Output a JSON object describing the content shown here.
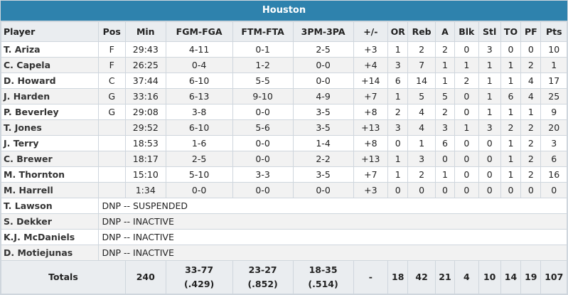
{
  "team": "Houston",
  "columns": [
    "Player",
    "Pos",
    "Min",
    "FGM-FGA",
    "FTM-FTA",
    "3PM-3PA",
    "+/-",
    "OR",
    "Reb",
    "A",
    "Blk",
    "Stl",
    "TO",
    "PF",
    "Pts"
  ],
  "players": [
    {
      "name": "T. Ariza",
      "pos": "F",
      "min": "29:43",
      "fg": "4-11",
      "ft": "0-1",
      "tp": "2-5",
      "pm": "+3",
      "or": "1",
      "reb": "2",
      "a": "2",
      "blk": "0",
      "stl": "3",
      "to": "0",
      "pf": "0",
      "pts": "10"
    },
    {
      "name": "C. Capela",
      "pos": "F",
      "min": "26:25",
      "fg": "0-4",
      "ft": "1-2",
      "tp": "0-0",
      "pm": "+4",
      "or": "3",
      "reb": "7",
      "a": "1",
      "blk": "1",
      "stl": "1",
      "to": "1",
      "pf": "2",
      "pts": "1"
    },
    {
      "name": "D. Howard",
      "pos": "C",
      "min": "37:44",
      "fg": "6-10",
      "ft": "5-5",
      "tp": "0-0",
      "pm": "+14",
      "or": "6",
      "reb": "14",
      "a": "1",
      "blk": "2",
      "stl": "1",
      "to": "1",
      "pf": "4",
      "pts": "17"
    },
    {
      "name": "J. Harden",
      "pos": "G",
      "min": "33:16",
      "fg": "6-13",
      "ft": "9-10",
      "tp": "4-9",
      "pm": "+7",
      "or": "1",
      "reb": "5",
      "a": "5",
      "blk": "0",
      "stl": "1",
      "to": "6",
      "pf": "4",
      "pts": "25"
    },
    {
      "name": "P. Beverley",
      "pos": "G",
      "min": "29:08",
      "fg": "3-8",
      "ft": "0-0",
      "tp": "3-5",
      "pm": "+8",
      "or": "2",
      "reb": "4",
      "a": "2",
      "blk": "0",
      "stl": "1",
      "to": "1",
      "pf": "1",
      "pts": "9"
    },
    {
      "name": "T. Jones",
      "pos": "",
      "min": "29:52",
      "fg": "6-10",
      "ft": "5-6",
      "tp": "3-5",
      "pm": "+13",
      "or": "3",
      "reb": "4",
      "a": "3",
      "blk": "1",
      "stl": "3",
      "to": "2",
      "pf": "2",
      "pts": "20"
    },
    {
      "name": "J. Terry",
      "pos": "",
      "min": "18:53",
      "fg": "1-6",
      "ft": "0-0",
      "tp": "1-4",
      "pm": "+8",
      "or": "0",
      "reb": "1",
      "a": "6",
      "blk": "0",
      "stl": "0",
      "to": "1",
      "pf": "2",
      "pts": "3"
    },
    {
      "name": "C. Brewer",
      "pos": "",
      "min": "18:17",
      "fg": "2-5",
      "ft": "0-0",
      "tp": "2-2",
      "pm": "+13",
      "or": "1",
      "reb": "3",
      "a": "0",
      "blk": "0",
      "stl": "0",
      "to": "1",
      "pf": "2",
      "pts": "6"
    },
    {
      "name": "M. Thornton",
      "pos": "",
      "min": "15:10",
      "fg": "5-10",
      "ft": "3-3",
      "tp": "3-5",
      "pm": "+7",
      "or": "1",
      "reb": "2",
      "a": "1",
      "blk": "0",
      "stl": "0",
      "to": "1",
      "pf": "2",
      "pts": "16"
    },
    {
      "name": "M. Harrell",
      "pos": "",
      "min": "1:34",
      "fg": "0-0",
      "ft": "0-0",
      "tp": "0-0",
      "pm": "+3",
      "or": "0",
      "reb": "0",
      "a": "0",
      "blk": "0",
      "stl": "0",
      "to": "0",
      "pf": "0",
      "pts": "0"
    }
  ],
  "dnp": [
    {
      "name": "T. Lawson",
      "note": "DNP -- SUSPENDED"
    },
    {
      "name": "S. Dekker",
      "note": "DNP -- INACTIVE"
    },
    {
      "name": "K.J. McDaniels",
      "note": "DNP -- INACTIVE"
    },
    {
      "name": "D. Motiejunas",
      "note": "DNP -- INACTIVE"
    }
  ],
  "totals": {
    "label": "Totals",
    "min": "240",
    "fg": "33-77",
    "fg_pct": "(.429)",
    "ft": "23-27",
    "ft_pct": "(.852)",
    "tp": "18-35",
    "tp_pct": "(.514)",
    "pm": "-",
    "or": "18",
    "reb": "42",
    "a": "21",
    "blk": "4",
    "stl": "10",
    "to": "14",
    "pf": "19",
    "pts": "107"
  },
  "colors": {
    "header_bg": "#2e82ad",
    "header_text": "#ffffff",
    "col_header_bg": "#eaedf0",
    "alt_row_bg": "#f2f2f2",
    "border": "#cfd6dd"
  }
}
